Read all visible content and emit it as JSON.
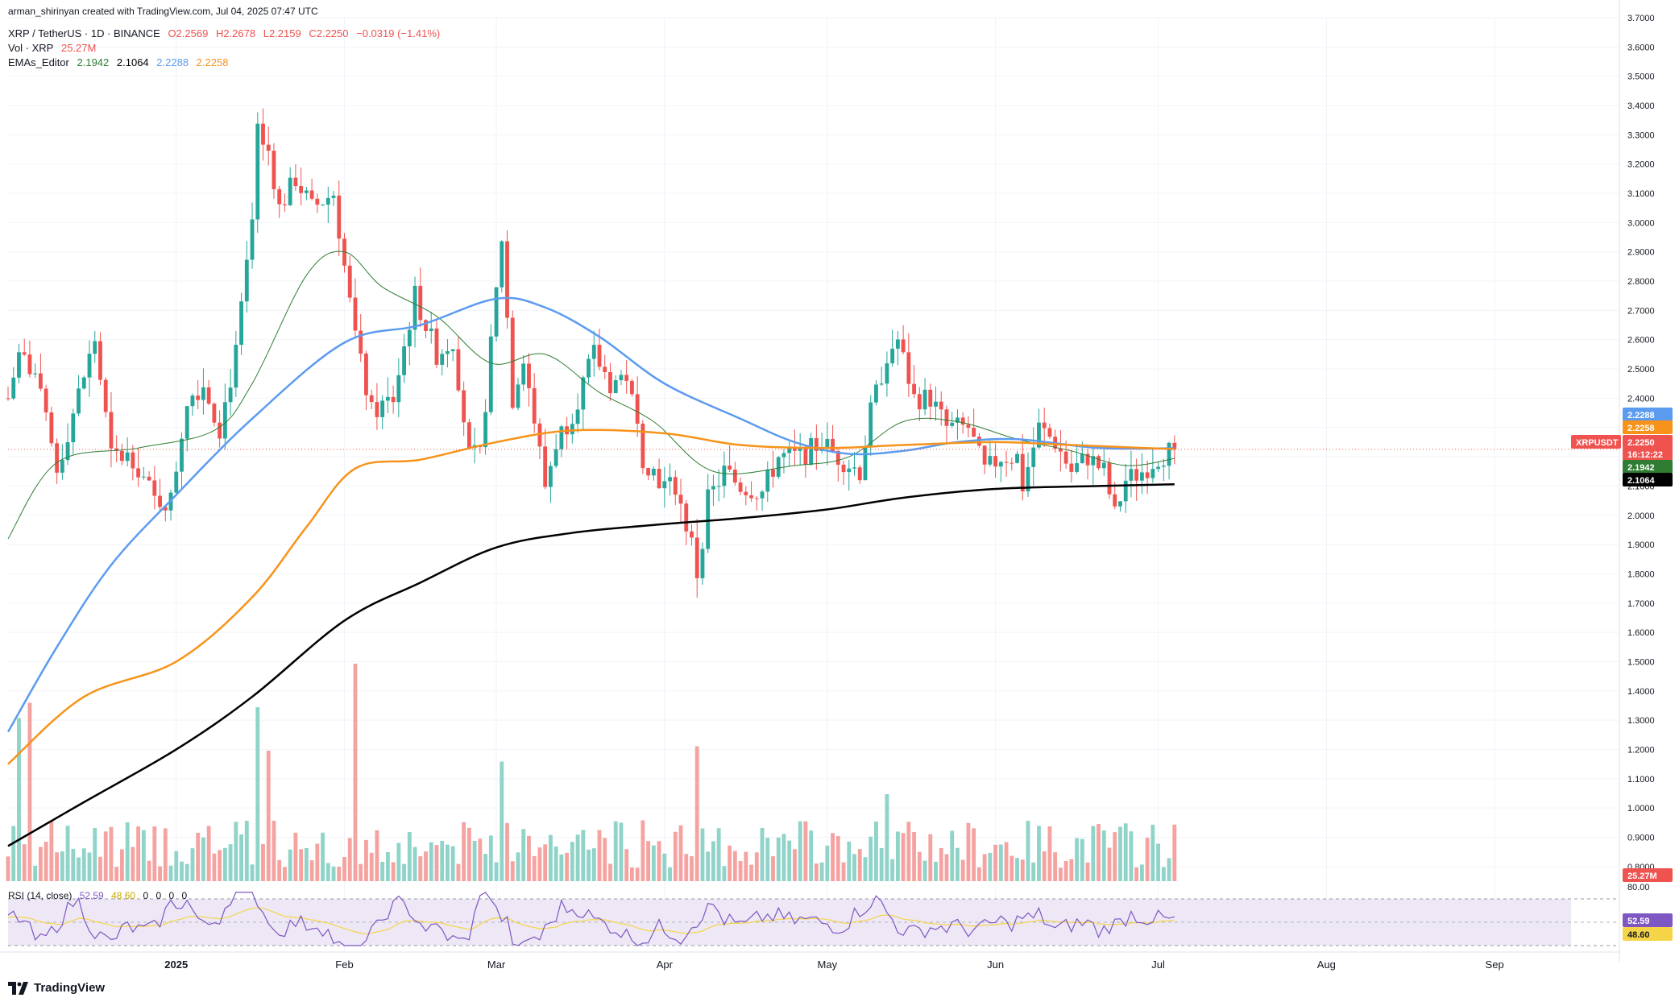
{
  "header": {
    "author_line": "arman_shirinyan created with TradingView.com, Jul 04, 2025 07:47 UTC",
    "symbol": "XRP / TetherUS · 1D · BINANCE",
    "open": "O2.2569",
    "high": "H2.2678",
    "low": "L2.2159",
    "close": "C2.2250",
    "change": "−0.0319 (−1.41%)",
    "vol_label": "Vol · XRP",
    "vol_value": "25.27M",
    "ema_label": "EMAs_Editor",
    "ema_values": [
      "2.1942",
      "2.1064",
      "2.2288",
      "2.2258"
    ],
    "rsi_label": "RSI (14, close)",
    "rsi_values": [
      "52.59",
      "48.60",
      "0",
      "0",
      "0",
      "0"
    ]
  },
  "brand": {
    "name": "TradingView"
  },
  "colors": {
    "up": "#26a69a",
    "down": "#ef5350",
    "vol_up": "#8fd3c9",
    "vol_down": "#f4a3a1",
    "ema20": "#2e7d32",
    "ema50": "#5b9bf0",
    "ema100": "#f7931a",
    "ema200": "#000000",
    "rsi_line": "#7e57c2",
    "rsi_ma": "#f5d547",
    "rsi_band": "#ede7f6",
    "grid": "#f0f3fa",
    "axis_text": "#131722",
    "last_price": "#ef5350"
  },
  "chart_data": {
    "type": "candlestick",
    "title": "XRP / TetherUS · 1D · BINANCE",
    "x_axis": {
      "tick_labels": [
        "2025",
        "Feb",
        "Mar",
        "Apr",
        "May",
        "Jun",
        "Jul",
        "Aug",
        "Sep"
      ],
      "tick_dates": [
        "2025-01-01",
        "2025-02-01",
        "2025-03-01",
        "2025-04-01",
        "2025-05-01",
        "2025-06-01",
        "2025-07-01",
        "2025-08-01",
        "2025-09-01"
      ],
      "range": [
        "2024-12-01",
        "2025-09-24"
      ]
    },
    "y_axis": {
      "scale": "linear",
      "ylim": [
        0.75,
        3.7
      ],
      "tick_labels": [
        "0.8000",
        "0.9000",
        "1.0000",
        "1.1000",
        "1.2000",
        "1.3000",
        "1.4000",
        "1.5000",
        "1.6000",
        "1.7000",
        "1.8000",
        "1.9000",
        "2.0000",
        "2.1000",
        "2.2000",
        "2.3000",
        "2.4000",
        "2.5000",
        "2.6000",
        "2.7000",
        "2.8000",
        "2.9000",
        "3.0000",
        "3.1000",
        "3.2000",
        "3.3000",
        "3.4000",
        "3.5000",
        "3.6000",
        "3.7000"
      ]
    },
    "price_keypoints": [
      {
        "date": "2024-12-01",
        "price": 2.4
      },
      {
        "date": "2024-12-03",
        "price": 2.55
      },
      {
        "date": "2024-12-06",
        "price": 2.48
      },
      {
        "date": "2024-12-10",
        "price": 2.15
      },
      {
        "date": "2024-12-13",
        "price": 2.35
      },
      {
        "date": "2024-12-17",
        "price": 2.6
      },
      {
        "date": "2024-12-20",
        "price": 2.2
      },
      {
        "date": "2024-12-24",
        "price": 2.2
      },
      {
        "date": "2024-12-28",
        "price": 2.05
      },
      {
        "date": "2024-12-31",
        "price": 2.05
      },
      {
        "date": "2025-01-03",
        "price": 2.4
      },
      {
        "date": "2025-01-06",
        "price": 2.45
      },
      {
        "date": "2025-01-09",
        "price": 2.3
      },
      {
        "date": "2025-01-12",
        "price": 2.55
      },
      {
        "date": "2025-01-15",
        "price": 3.0
      },
      {
        "date": "2025-01-16",
        "price": 3.3
      },
      {
        "date": "2025-01-18",
        "price": 3.25
      },
      {
        "date": "2025-01-20",
        "price": 3.05
      },
      {
        "date": "2025-01-23",
        "price": 3.15
      },
      {
        "date": "2025-01-26",
        "price": 3.05
      },
      {
        "date": "2025-01-30",
        "price": 3.1
      },
      {
        "date": "2025-02-01",
        "price": 2.85
      },
      {
        "date": "2025-02-03",
        "price": 2.6
      },
      {
        "date": "2025-02-06",
        "price": 2.35
      },
      {
        "date": "2025-02-10",
        "price": 2.4
      },
      {
        "date": "2025-02-14",
        "price": 2.75
      },
      {
        "date": "2025-02-18",
        "price": 2.55
      },
      {
        "date": "2025-02-21",
        "price": 2.6
      },
      {
        "date": "2025-02-24",
        "price": 2.2
      },
      {
        "date": "2025-02-26",
        "price": 2.2
      },
      {
        "date": "2025-03-02",
        "price": 2.95
      },
      {
        "date": "2025-03-04",
        "price": 2.4
      },
      {
        "date": "2025-03-06",
        "price": 2.55
      },
      {
        "date": "2025-03-10",
        "price": 2.1
      },
      {
        "date": "2025-03-12",
        "price": 2.25
      },
      {
        "date": "2025-03-15",
        "price": 2.35
      },
      {
        "date": "2025-03-19",
        "price": 2.55
      },
      {
        "date": "2025-03-22",
        "price": 2.45
      },
      {
        "date": "2025-03-25",
        "price": 2.48
      },
      {
        "date": "2025-03-28",
        "price": 2.2
      },
      {
        "date": "2025-04-01",
        "price": 2.1
      },
      {
        "date": "2025-04-03",
        "price": 2.1
      },
      {
        "date": "2025-04-06",
        "price": 1.9
      },
      {
        "date": "2025-04-07",
        "price": 1.8
      },
      {
        "date": "2025-04-09",
        "price": 2.05
      },
      {
        "date": "2025-04-12",
        "price": 2.15
      },
      {
        "date": "2025-04-15",
        "price": 2.1
      },
      {
        "date": "2025-04-19",
        "price": 2.08
      },
      {
        "date": "2025-04-22",
        "price": 2.2
      },
      {
        "date": "2025-04-26",
        "price": 2.2
      },
      {
        "date": "2025-04-30",
        "price": 2.25
      },
      {
        "date": "2025-05-03",
        "price": 2.2
      },
      {
        "date": "2025-05-07",
        "price": 2.15
      },
      {
        "date": "2025-05-09",
        "price": 2.35
      },
      {
        "date": "2025-05-12",
        "price": 2.55
      },
      {
        "date": "2025-05-14",
        "price": 2.6
      },
      {
        "date": "2025-05-17",
        "price": 2.4
      },
      {
        "date": "2025-05-20",
        "price": 2.4
      },
      {
        "date": "2025-05-23",
        "price": 2.3
      },
      {
        "date": "2025-05-27",
        "price": 2.3
      },
      {
        "date": "2025-05-30",
        "price": 2.15
      },
      {
        "date": "2025-06-02",
        "price": 2.2
      },
      {
        "date": "2025-06-05",
        "price": 2.2
      },
      {
        "date": "2025-06-06",
        "price": 2.1
      },
      {
        "date": "2025-06-09",
        "price": 2.3
      },
      {
        "date": "2025-06-12",
        "price": 2.25
      },
      {
        "date": "2025-06-15",
        "price": 2.15
      },
      {
        "date": "2025-06-18",
        "price": 2.2
      },
      {
        "date": "2025-06-21",
        "price": 2.15
      },
      {
        "date": "2025-06-23",
        "price": 2.0
      },
      {
        "date": "2025-06-25",
        "price": 2.12
      },
      {
        "date": "2025-06-28",
        "price": 2.15
      },
      {
        "date": "2025-07-01",
        "price": 2.2
      },
      {
        "date": "2025-07-04",
        "price": 2.225
      }
    ],
    "ema_series": [
      {
        "name": "EMA 20",
        "color": "#2e7d32",
        "width": 1,
        "points": [
          [
            "2024-12-01",
            1.92
          ],
          [
            "2024-12-10",
            2.18
          ],
          [
            "2024-12-25",
            2.23
          ],
          [
            "2025-01-08",
            2.29
          ],
          [
            "2025-01-15",
            2.45
          ],
          [
            "2025-01-25",
            2.82
          ],
          [
            "2025-02-01",
            2.9
          ],
          [
            "2025-02-08",
            2.78
          ],
          [
            "2025-02-18",
            2.68
          ],
          [
            "2025-02-28",
            2.52
          ],
          [
            "2025-03-10",
            2.55
          ],
          [
            "2025-03-20",
            2.42
          ],
          [
            "2025-03-30",
            2.32
          ],
          [
            "2025-04-10",
            2.15
          ],
          [
            "2025-04-25",
            2.17
          ],
          [
            "2025-05-05",
            2.2
          ],
          [
            "2025-05-15",
            2.32
          ],
          [
            "2025-05-25",
            2.32
          ],
          [
            "2025-06-05",
            2.26
          ],
          [
            "2025-06-15",
            2.22
          ],
          [
            "2025-06-25",
            2.17
          ],
          [
            "2025-07-04",
            2.194
          ]
        ]
      },
      {
        "name": "EMA 50",
        "color": "#5b9bf0",
        "width": 2.5,
        "points": [
          [
            "2024-12-01",
            1.26
          ],
          [
            "2024-12-10",
            1.55
          ],
          [
            "2024-12-20",
            1.83
          ],
          [
            "2025-01-01",
            2.07
          ],
          [
            "2025-01-15",
            2.33
          ],
          [
            "2025-02-01",
            2.59
          ],
          [
            "2025-02-15",
            2.65
          ],
          [
            "2025-03-01",
            2.74
          ],
          [
            "2025-03-10",
            2.71
          ],
          [
            "2025-03-20",
            2.61
          ],
          [
            "2025-04-01",
            2.45
          ],
          [
            "2025-04-15",
            2.33
          ],
          [
            "2025-04-25",
            2.25
          ],
          [
            "2025-05-05",
            2.21
          ],
          [
            "2025-05-15",
            2.22
          ],
          [
            "2025-05-25",
            2.25
          ],
          [
            "2025-06-05",
            2.26
          ],
          [
            "2025-06-20",
            2.23
          ],
          [
            "2025-07-04",
            2.229
          ]
        ]
      },
      {
        "name": "EMA 100",
        "color": "#f7931a",
        "width": 2.5,
        "points": [
          [
            "2024-12-01",
            1.15
          ],
          [
            "2024-12-15",
            1.38
          ],
          [
            "2025-01-01",
            1.5
          ],
          [
            "2025-01-15",
            1.72
          ],
          [
            "2025-01-25",
            1.96
          ],
          [
            "2025-02-03",
            2.16
          ],
          [
            "2025-02-15",
            2.19
          ],
          [
            "2025-03-01",
            2.25
          ],
          [
            "2025-03-15",
            2.29
          ],
          [
            "2025-04-01",
            2.28
          ],
          [
            "2025-04-15",
            2.24
          ],
          [
            "2025-05-01",
            2.23
          ],
          [
            "2025-05-15",
            2.24
          ],
          [
            "2025-06-01",
            2.25
          ],
          [
            "2025-06-15",
            2.24
          ],
          [
            "2025-07-04",
            2.226
          ]
        ]
      },
      {
        "name": "EMA 200",
        "color": "#000000",
        "width": 2.5,
        "points": [
          [
            "2024-12-01",
            0.87
          ],
          [
            "2024-12-15",
            1.02
          ],
          [
            "2025-01-01",
            1.2
          ],
          [
            "2025-01-15",
            1.38
          ],
          [
            "2025-02-01",
            1.64
          ],
          [
            "2025-02-15",
            1.77
          ],
          [
            "2025-03-01",
            1.89
          ],
          [
            "2025-03-15",
            1.94
          ],
          [
            "2025-04-01",
            1.97
          ],
          [
            "2025-04-15",
            1.99
          ],
          [
            "2025-05-01",
            2.02
          ],
          [
            "2025-05-15",
            2.06
          ],
          [
            "2025-06-01",
            2.09
          ],
          [
            "2025-06-20",
            2.1
          ],
          [
            "2025-07-04",
            2.106
          ]
        ]
      }
    ],
    "volume": {
      "last_value": "25.27M",
      "spikes": [
        {
          "date": "2024-12-03",
          "level": 0.75
        },
        {
          "date": "2024-12-05",
          "level": 0.82
        },
        {
          "date": "2025-01-16",
          "level": 0.8
        },
        {
          "date": "2025-01-18",
          "level": 0.6
        },
        {
          "date": "2025-02-03",
          "level": 1.0
        },
        {
          "date": "2025-03-02",
          "level": 0.55
        },
        {
          "date": "2025-04-07",
          "level": 0.62
        },
        {
          "date": "2025-05-12",
          "level": 0.4
        }
      ]
    },
    "rsi": {
      "range": [
        0,
        100
      ],
      "upper_band": 70,
      "lower_band": 30,
      "top_label": "80.00",
      "value": "52.59",
      "ma_value": "48.60"
    },
    "price_labels": [
      {
        "text": "2.2288",
        "price": 2.2288,
        "color": "#5b9bf0"
      },
      {
        "text": "2.2258",
        "price": 2.2258,
        "color": "#f7931a"
      },
      {
        "text": "2.2250",
        "price": 2.225,
        "color": "#ef5350"
      },
      {
        "text": "16:12:22",
        "price": 2.225,
        "color": "#ef5350"
      },
      {
        "text": "2.1942",
        "price": 2.1942,
        "color": "#2e7d32"
      },
      {
        "text": "2.1064",
        "price": 2.1064,
        "color": "#000000"
      }
    ],
    "symbol_badge": "XRPUSDT",
    "current_price": 2.225
  }
}
